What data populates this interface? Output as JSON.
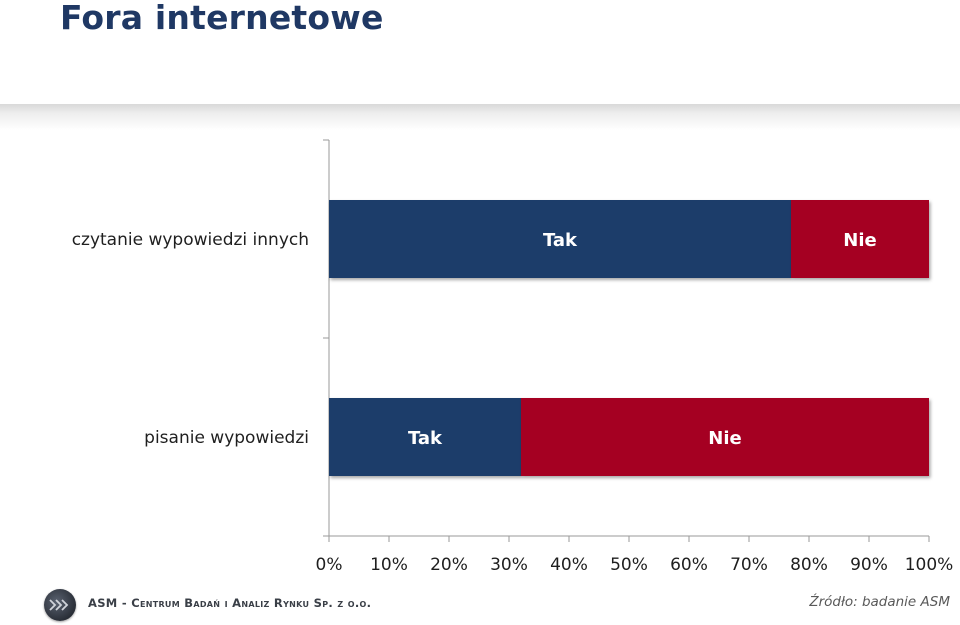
{
  "page": {
    "title": "Fora internetowe",
    "company": "ASM - Centrum Badań i Analiz Rynku Sp. z o.o.",
    "source": "Źródło: badanie ASM"
  },
  "colors": {
    "title": "#1f3864",
    "tak": "#1f3d6b",
    "nie": "#a50021",
    "axis": "#9a9a9a",
    "category_text": "#1f1f1f",
    "tick_text": "#1f1f1f"
  },
  "chart_data": {
    "type": "bar",
    "orientation": "horizontal",
    "stacked": "percent",
    "title": "",
    "xlabel": "",
    "ylabel": "",
    "xlim": [
      0,
      100
    ],
    "x_ticks": [
      "0%",
      "10%",
      "20%",
      "30%",
      "40%",
      "50%",
      "60%",
      "70%",
      "80%",
      "90%",
      "100%"
    ],
    "categories": [
      "czytanie wypowiedzi innych",
      "pisanie wypowiedzi"
    ],
    "series": [
      {
        "name": "Tak",
        "values": [
          77,
          32
        ]
      },
      {
        "name": "Nie",
        "values": [
          23,
          68
        ]
      }
    ],
    "legend": "none",
    "grid": false
  }
}
